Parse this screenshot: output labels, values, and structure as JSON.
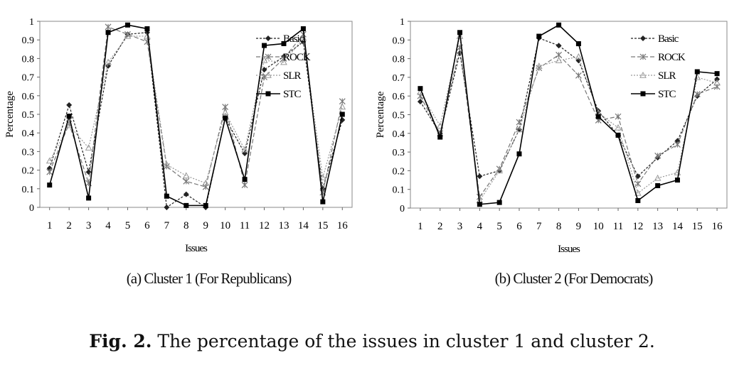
{
  "figure": {
    "label": "Fig. 2.",
    "caption": " The percentage of the issues in cluster 1 and cluster 2."
  },
  "chart_data": [
    {
      "type": "line",
      "caption": "(a) Cluster 1 (For Republicans)",
      "xlabel": "Issues",
      "ylabel": "Percentage",
      "x": [
        1,
        2,
        3,
        4,
        5,
        6,
        7,
        8,
        9,
        10,
        11,
        12,
        13,
        14,
        15,
        16
      ],
      "ylim": [
        0,
        1
      ],
      "yticks": [
        "0",
        "0.1",
        "0.2",
        "0.3",
        "0.4",
        "0.5",
        "0.6",
        "0.7",
        "0.8",
        "0.9",
        "1"
      ],
      "legend_position": "top-right",
      "grid": false,
      "series": [
        {
          "name": "Basic",
          "marker": "diamond",
          "dash": "3,2",
          "color": "#222222",
          "values": [
            0.21,
            0.55,
            0.19,
            0.76,
            0.93,
            0.94,
            0.0,
            0.07,
            0.0,
            0.48,
            0.29,
            0.74,
            0.81,
            0.89,
            0.1,
            0.47
          ]
        },
        {
          "name": "ROCK",
          "marker": "asterisk",
          "dash": "6,3",
          "color": "#777777",
          "values": [
            0.19,
            0.45,
            0.13,
            0.97,
            0.93,
            0.89,
            0.22,
            0.14,
            0.11,
            0.54,
            0.12,
            0.7,
            0.8,
            0.93,
            0.08,
            0.57
          ]
        },
        {
          "name": "SLR",
          "marker": "triangle",
          "dash": "2,2",
          "color": "#999999",
          "values": [
            0.25,
            0.44,
            0.32,
            0.78,
            0.92,
            0.92,
            0.23,
            0.17,
            0.13,
            0.51,
            0.31,
            0.79,
            0.78,
            0.91,
            0.16,
            0.54
          ]
        },
        {
          "name": "STC",
          "marker": "square",
          "dash": "",
          "color": "#000000",
          "values": [
            0.12,
            0.49,
            0.05,
            0.94,
            0.98,
            0.96,
            0.06,
            0.01,
            0.01,
            0.48,
            0.15,
            0.87,
            0.88,
            0.96,
            0.03,
            0.5
          ]
        }
      ]
    },
    {
      "type": "line",
      "caption": "(b) Cluster 2 (For Democrats)",
      "xlabel": "Issues",
      "ylabel": "Percentage",
      "x": [
        1,
        2,
        3,
        4,
        5,
        6,
        7,
        8,
        9,
        10,
        11,
        12,
        13,
        14,
        15,
        16
      ],
      "ylim": [
        0,
        1
      ],
      "yticks": [
        "0",
        "0.1",
        "0.2",
        "0.3",
        "0.4",
        "0.5",
        "0.6",
        "0.7",
        "0.8",
        "0.9",
        "1"
      ],
      "legend_position": "top-right",
      "grid": false,
      "series": [
        {
          "name": "Basic",
          "marker": "diamond",
          "dash": "3,2",
          "color": "#222222",
          "values": [
            0.57,
            0.4,
            0.83,
            0.17,
            0.2,
            0.42,
            0.91,
            0.87,
            0.79,
            0.52,
            0.39,
            0.17,
            0.27,
            0.36,
            0.6,
            0.69
          ]
        },
        {
          "name": "ROCK",
          "marker": "asterisk",
          "dash": "6,3",
          "color": "#777777",
          "values": [
            0.6,
            0.4,
            0.86,
            0.06,
            0.21,
            0.46,
            0.75,
            0.82,
            0.71,
            0.47,
            0.49,
            0.13,
            0.28,
            0.34,
            0.61,
            0.65
          ]
        },
        {
          "name": "SLR",
          "marker": "triangle",
          "dash": "2,2",
          "color": "#999999",
          "values": [
            0.62,
            0.44,
            0.92,
            0.04,
            0.2,
            0.42,
            0.76,
            0.79,
            0.81,
            0.51,
            0.43,
            0.08,
            0.16,
            0.19,
            0.7,
            0.67
          ]
        },
        {
          "name": "STC",
          "marker": "square",
          "dash": "",
          "color": "#000000",
          "values": [
            0.64,
            0.38,
            0.94,
            0.02,
            0.03,
            0.29,
            0.92,
            0.98,
            0.88,
            0.49,
            0.39,
            0.04,
            0.12,
            0.15,
            0.73,
            0.72
          ]
        }
      ]
    }
  ]
}
